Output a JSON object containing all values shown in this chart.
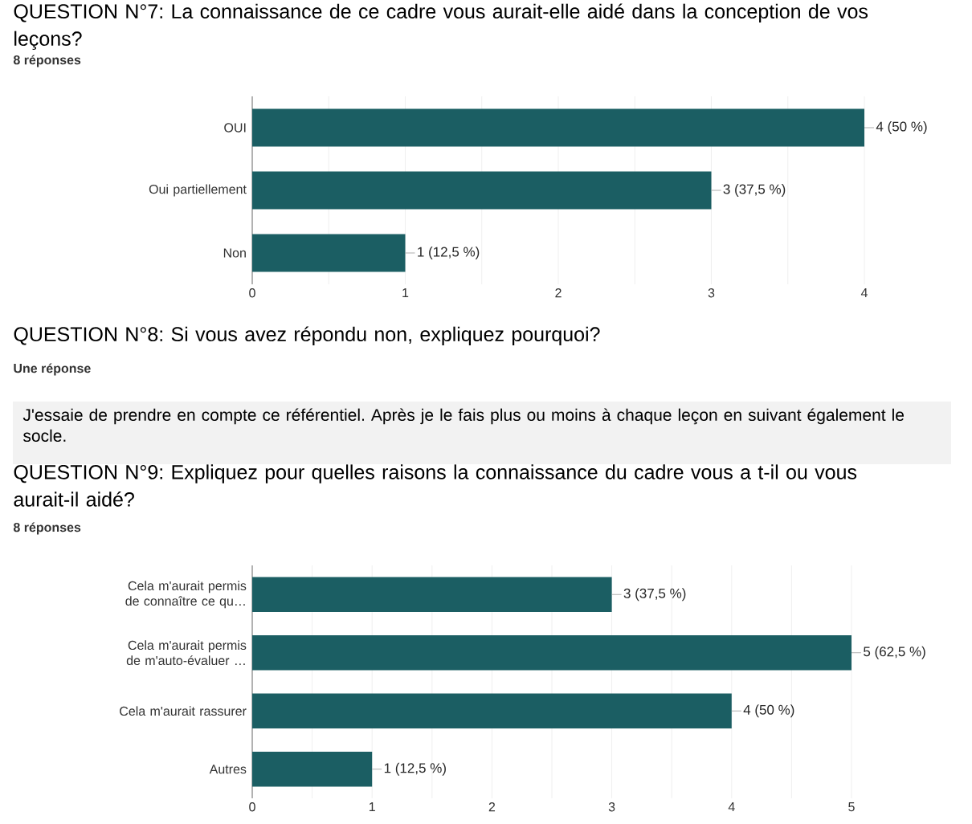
{
  "chart_data": [
    {
      "type": "bar",
      "orientation": "horizontal",
      "title": "QUESTION N°7: La connaissance de ce cadre vous aurait-elle aidé dans la conception de vos leçons?",
      "subtitle": "8 réponses",
      "categories": [
        "OUI",
        "Oui partiellement",
        "Non"
      ],
      "values": [
        4,
        3,
        1
      ],
      "color": "#1b5e63",
      "value_labels": [
        "4 (50 %)",
        "3 (37,5 %)",
        "1 (12,5 %)"
      ],
      "xlim": [
        0,
        4
      ],
      "xticks": [
        0,
        1,
        2,
        3,
        4
      ],
      "grid": "x"
    },
    {
      "type": "other",
      "title": "QUESTION N°8: Si vous avez répondu non, expliquez pourquoi?",
      "subtitle": "Une réponse",
      "annotations": [
        "J'essaie de prendre en compte ce référentiel. Après je le fais plus ou moins à chaque leçon en suivant également le socle."
      ]
    },
    {
      "type": "bar",
      "orientation": "horizontal",
      "title": "QUESTION N°9: Expliquez pour quelles raisons la connaissance du cadre vous a t-il ou vous aurait-il aidé?",
      "subtitle": "8 réponses",
      "categories": [
        "Cela m'aurait permis de connaître ce qu…",
        "Cela m'aurait permis de m'auto-évaluer …",
        "Cela m'aurait rassurer",
        "Autres"
      ],
      "values": [
        3,
        5,
        4,
        1
      ],
      "color": "#1b5e63",
      "value_labels": [
        "3 (37,5 %)",
        "5 (62,5 %)",
        "4 (50 %)",
        "1 (12,5 %)"
      ],
      "xlim": [
        0,
        5
      ],
      "xticks": [
        0,
        1,
        2,
        3,
        4,
        5
      ],
      "grid": "x"
    }
  ]
}
